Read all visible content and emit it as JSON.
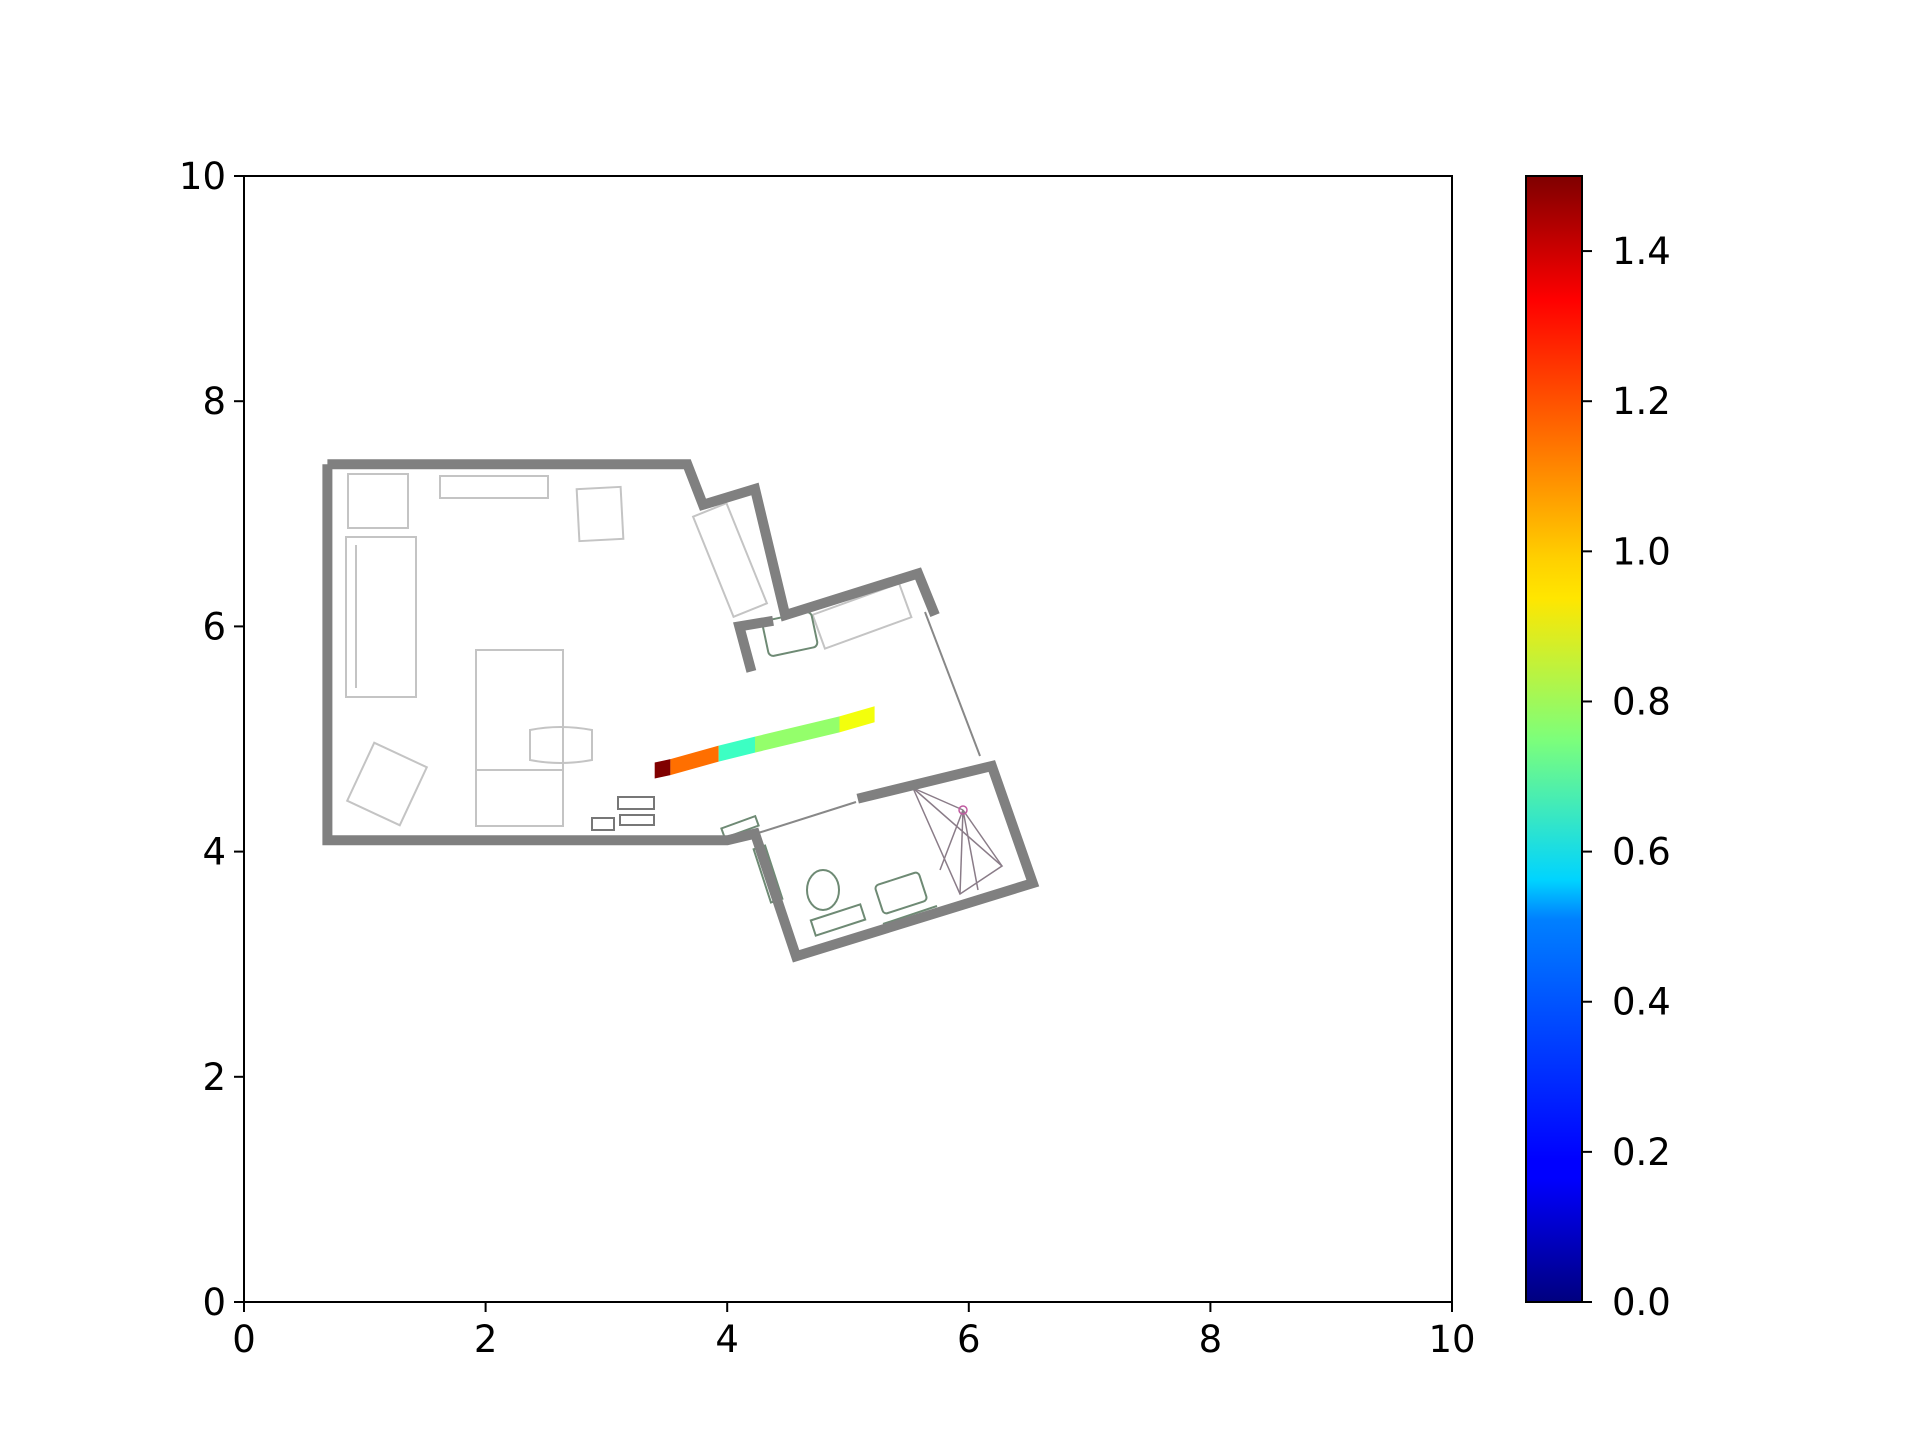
{
  "chart_data": {
    "type": "heatmap",
    "title": "",
    "xlabel": "",
    "ylabel": "",
    "xlim": [
      0,
      10
    ],
    "ylim": [
      0,
      10
    ],
    "x_ticks": [
      "0",
      "2",
      "4",
      "6",
      "8",
      "10"
    ],
    "y_ticks": [
      "0",
      "2",
      "4",
      "6",
      "8",
      "10"
    ],
    "grid": false,
    "colormap": "jet",
    "colorbar": {
      "range": [
        0,
        1.5
      ],
      "ticks": [
        "0.0",
        "0.2",
        "0.4",
        "0.6",
        "0.8",
        "1.0",
        "1.2",
        "1.4"
      ]
    },
    "walls": [
      [
        [
          0.69,
          7.44
        ],
        [
          3.67,
          7.44
        ],
        [
          3.8,
          7.08
        ],
        [
          4.23,
          7.22
        ],
        [
          4.48,
          6.1
        ],
        [
          5.58,
          6.47
        ],
        [
          5.72,
          6.1
        ]
      ],
      [
        [
          4.2,
          5.6
        ],
        [
          4.1,
          6.0
        ],
        [
          4.38,
          6.05
        ]
      ],
      [
        [
          0.69,
          7.44
        ],
        [
          0.69,
          4.1
        ],
        [
          4.0,
          4.1
        ],
        [
          4.23,
          4.16
        ],
        [
          4.57,
          3.07
        ],
        [
          6.53,
          3.72
        ],
        [
          6.19,
          4.76
        ],
        [
          5.08,
          4.47
        ]
      ]
    ],
    "path": {
      "x0": [
        3.4,
        3.53,
        3.93,
        4.23,
        4.93
      ],
      "x1": [
        3.53,
        3.93,
        4.23,
        4.93,
        5.22
      ],
      "y0": [
        4.72,
        4.75,
        4.87,
        4.95,
        5.13
      ],
      "y1": [
        4.75,
        4.87,
        4.95,
        5.13,
        5.22
      ],
      "values": [
        1.5,
        1.15,
        0.65,
        0.78,
        0.92
      ]
    }
  }
}
